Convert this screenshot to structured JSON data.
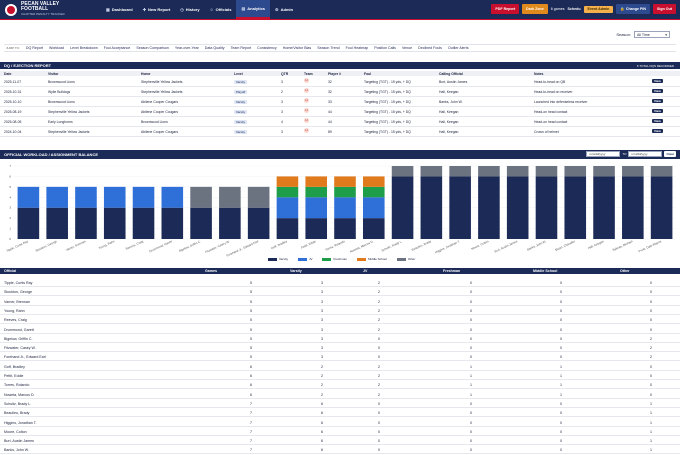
{
  "header": {
    "title": "PECAN VALLEY FOOTBALL",
    "subtitle": "CHAPTER PENALTY TRACKER",
    "nav": [
      {
        "label": "Dashboard",
        "icon": "dashboard-icon"
      },
      {
        "label": "New Report",
        "icon": "new-report-icon"
      },
      {
        "label": "History",
        "icon": "history-icon"
      },
      {
        "label": "Officials",
        "icon": "officials-icon"
      },
      {
        "label": "Analytics",
        "icon": "analytics-icon",
        "active": true
      },
      {
        "label": "Admin",
        "icon": "admin-icon"
      }
    ],
    "pdf_report": "PDF Report",
    "dark_zone": "Dark Zone",
    "games_count": "6 games",
    "schedule_label": "Schedu",
    "event_admin": "Event Admin",
    "change_pin": "Change PIN",
    "sign_out": "Sign Out"
  },
  "season": {
    "label": "Season:",
    "value": "All Time"
  },
  "jump": {
    "label": "JUMP TO:",
    "links": [
      "DQ Report",
      "Workload",
      "Level Breakdown",
      "Foul Acceptance",
      "Season Comparison",
      "Year-over-Year",
      "Data Quality",
      "Team Report",
      "Consistency",
      "Home/Visitor Bias",
      "Season Trend",
      "Foul Heatmap",
      "Position Calls",
      "Venue",
      "Declined Fouls",
      "Outlier Alerts"
    ]
  },
  "dq": {
    "title": "DQ / EJECTION REPORT",
    "count_label": "6 TOTAL DQS RECORDED",
    "columns": [
      "Date",
      "Visitor",
      "Home",
      "Level",
      "QTR",
      "Team",
      "Player #",
      "Foul",
      "Calling Official",
      "Notes",
      ""
    ],
    "view_label": "View",
    "rows": [
      {
        "date": "2025-11-07",
        "visitor": "Brownwood Lions",
        "home": "Stephenville Yellow Jackets",
        "level": "Varsity",
        "qtr": "3",
        "team": "H",
        "player": "32",
        "foul": "Targeting (TGT) - 15 yds, + DQ",
        "official": "Burt, Austin James",
        "notes": "Head-to-head on QB"
      },
      {
        "date": "2025-10-31",
        "visitor": "Wylie Bulldogs",
        "home": "Stephenville Yellow Jackets",
        "level": "Playoff",
        "qtr": "2",
        "team": "H",
        "player": "32",
        "foul": "Targeting (TGT) - 15 yds, + DQ",
        "official": "Hall, Keegan",
        "notes": "Head-to-head on receiver"
      },
      {
        "date": "2025-10-10",
        "visitor": "Brownwood Lions",
        "home": "Abilene Cooper Cougars",
        "level": "Varsity",
        "qtr": "3",
        "team": "H",
        "player": "33",
        "foul": "Targeting (TGT) - 15 yds, + DQ",
        "official": "Banks, John W.",
        "notes": "Launched into defenseless receiver"
      },
      {
        "date": "2025-08-19",
        "visitor": "Stephenville Yellow Jackets",
        "home": "Abilene Cooper Cougars",
        "level": "Varsity",
        "qtr": "3",
        "team": "H",
        "player": "44",
        "foul": "Targeting (TGT) - 15 yds, + DQ",
        "official": "Hall, Keegan",
        "notes": "Head-on head contact"
      },
      {
        "date": "2025-08-05",
        "visitor": "Early Longhorns",
        "home": "Brownwood Lions",
        "level": "Varsity",
        "qtr": "4",
        "team": "H",
        "player": "44",
        "foul": "Targeting (TGT) - 15 yds, + DQ",
        "official": "Hall, Keegan",
        "notes": "Head-on head contact"
      },
      {
        "date": "2024-10-04",
        "visitor": "Stephenville Yellow Jackets",
        "home": "Abilene Cooper Cougars",
        "level": "Varsity",
        "qtr": "3",
        "team": "H",
        "player": "89",
        "foul": "Targeting (TGT) - 15 yds, + DQ",
        "official": "Hall, Keegan",
        "notes": "Crown of helmet"
      }
    ]
  },
  "workload": {
    "title": "OFFICIAL WORKLOAD / ASSIGNMENT BALANCE",
    "date_placeholder": "mm/dd/yyyy",
    "to_label": "TO",
    "go_label": "Clear",
    "columns": [
      "Official",
      "Games",
      "Varsity",
      "JV",
      "Freshman",
      "Middle School",
      "Other"
    ],
    "rows": [
      {
        "name": "Tipple, Curtis Ray",
        "games": "5",
        "varsity": "3",
        "jv": "2",
        "fr": "0",
        "ms": "0",
        "other": "0"
      },
      {
        "name": "Stockton, George",
        "games": "5",
        "varsity": "3",
        "jv": "2",
        "fr": "0",
        "ms": "0",
        "other": "0"
      },
      {
        "name": "Varner, Brennan",
        "games": "5",
        "varsity": "3",
        "jv": "2",
        "fr": "0",
        "ms": "0",
        "other": "0"
      },
      {
        "name": "Young, Rahn",
        "games": "5",
        "varsity": "3",
        "jv": "2",
        "fr": "0",
        "ms": "0",
        "other": "0"
      },
      {
        "name": "Reeves, Craig",
        "games": "5",
        "varsity": "3",
        "jv": "2",
        "fr": "0",
        "ms": "0",
        "other": "0"
      },
      {
        "name": "Drummond, Garett",
        "games": "5",
        "varsity": "3",
        "jv": "2",
        "fr": "0",
        "ms": "0",
        "other": "0"
      },
      {
        "name": "Bigelow, Griffin C.",
        "games": "5",
        "varsity": "3",
        "jv": "0",
        "fr": "0",
        "ms": "0",
        "other": "2"
      },
      {
        "name": "Fitzwater, Casey W.",
        "games": "5",
        "varsity": "3",
        "jv": "0",
        "fr": "0",
        "ms": "0",
        "other": "2"
      },
      {
        "name": "Forehand Jr., Edward Earl",
        "games": "5",
        "varsity": "3",
        "jv": "0",
        "fr": "0",
        "ms": "0",
        "other": "2"
      },
      {
        "name": "Goff, Bradley",
        "games": "6",
        "varsity": "2",
        "jv": "2",
        "fr": "1",
        "ms": "1",
        "other": "0"
      },
      {
        "name": "Pettit, Eddie",
        "games": "6",
        "varsity": "2",
        "jv": "2",
        "fr": "1",
        "ms": "1",
        "other": "0"
      },
      {
        "name": "Torres, Rolando",
        "games": "6",
        "varsity": "2",
        "jv": "2",
        "fr": "1",
        "ms": "1",
        "other": "0"
      },
      {
        "name": "Noweta, Marcos D.",
        "games": "6",
        "varsity": "2",
        "jv": "2",
        "fr": "1",
        "ms": "1",
        "other": "0"
      },
      {
        "name": "Schultz, Brady L.",
        "games": "7",
        "varsity": "6",
        "jv": "0",
        "fr": "0",
        "ms": "0",
        "other": "1"
      },
      {
        "name": "Beaulieu, Brady",
        "games": "7",
        "varsity": "6",
        "jv": "0",
        "fr": "0",
        "ms": "0",
        "other": "1"
      },
      {
        "name": "Higgins, Jonathan T.",
        "games": "7",
        "varsity": "6",
        "jv": "0",
        "fr": "0",
        "ms": "0",
        "other": "1"
      },
      {
        "name": "Moore, Colton",
        "games": "7",
        "varsity": "6",
        "jv": "0",
        "fr": "0",
        "ms": "0",
        "other": "1"
      },
      {
        "name": "Burt, Austin James",
        "games": "7",
        "varsity": "6",
        "jv": "0",
        "fr": "0",
        "ms": "0",
        "other": "1"
      },
      {
        "name": "Banks, John W.",
        "games": "7",
        "varsity": "6",
        "jv": "0",
        "fr": "0",
        "ms": "0",
        "other": "1"
      }
    ]
  },
  "colors": {
    "varsity": "#1b2a57",
    "jv": "#2f6fd8",
    "freshman": "#1e9e4a",
    "middle_school": "#e07a1c",
    "other": "#6b7280"
  },
  "chart_data": {
    "type": "bar",
    "stacked": true,
    "categories": [
      "Tipple, Curtis Ray",
      "Stockton, George",
      "Varner, Brennan",
      "Young, Rahn",
      "Reeves, Craig",
      "Drummond, Garett",
      "Bigelow, Griffin C.",
      "Fitzwater, Casey W.",
      "Forehand Jr., Edward Earl",
      "Goff, Bradley",
      "Pettit, Eddie",
      "Torres, Rolando",
      "Noweta, Marcos D.",
      "Schultz, Brady L.",
      "Beaulieu, Brady",
      "Higgins, Jonathan T.",
      "Moore, Colton",
      "Burt, Austin James",
      "Banks, John W.",
      "Stuart, Chandler",
      "Hall, Keegan",
      "Salinas, Michael",
      "Pruitt, Dale Wayne"
    ],
    "series": [
      {
        "name": "Varsity",
        "values": [
          3,
          3,
          3,
          3,
          3,
          3,
          3,
          3,
          3,
          2,
          2,
          2,
          2,
          6,
          6,
          6,
          6,
          6,
          6,
          6,
          6,
          6,
          6
        ]
      },
      {
        "name": "JV",
        "values": [
          2,
          2,
          2,
          2,
          2,
          2,
          0,
          0,
          0,
          2,
          2,
          2,
          2,
          0,
          0,
          0,
          0,
          0,
          0,
          0,
          0,
          0,
          0
        ]
      },
      {
        "name": "Freshman",
        "values": [
          0,
          0,
          0,
          0,
          0,
          0,
          0,
          0,
          0,
          1,
          1,
          1,
          1,
          0,
          0,
          0,
          0,
          0,
          0,
          0,
          0,
          0,
          0
        ]
      },
      {
        "name": "Middle School",
        "values": [
          0,
          0,
          0,
          0,
          0,
          0,
          0,
          0,
          0,
          1,
          1,
          1,
          1,
          0,
          0,
          0,
          0,
          0,
          0,
          0,
          0,
          0,
          0
        ]
      },
      {
        "name": "Other",
        "values": [
          0,
          0,
          0,
          0,
          0,
          0,
          2,
          2,
          2,
          0,
          0,
          0,
          0,
          1,
          1,
          1,
          1,
          1,
          1,
          1,
          1,
          1,
          1
        ]
      }
    ],
    "yticks": [
      "0",
      "1",
      "2",
      "3",
      "4",
      "5",
      "6",
      "7"
    ],
    "ylim": [
      0,
      7
    ],
    "legend_position": "bottom"
  }
}
